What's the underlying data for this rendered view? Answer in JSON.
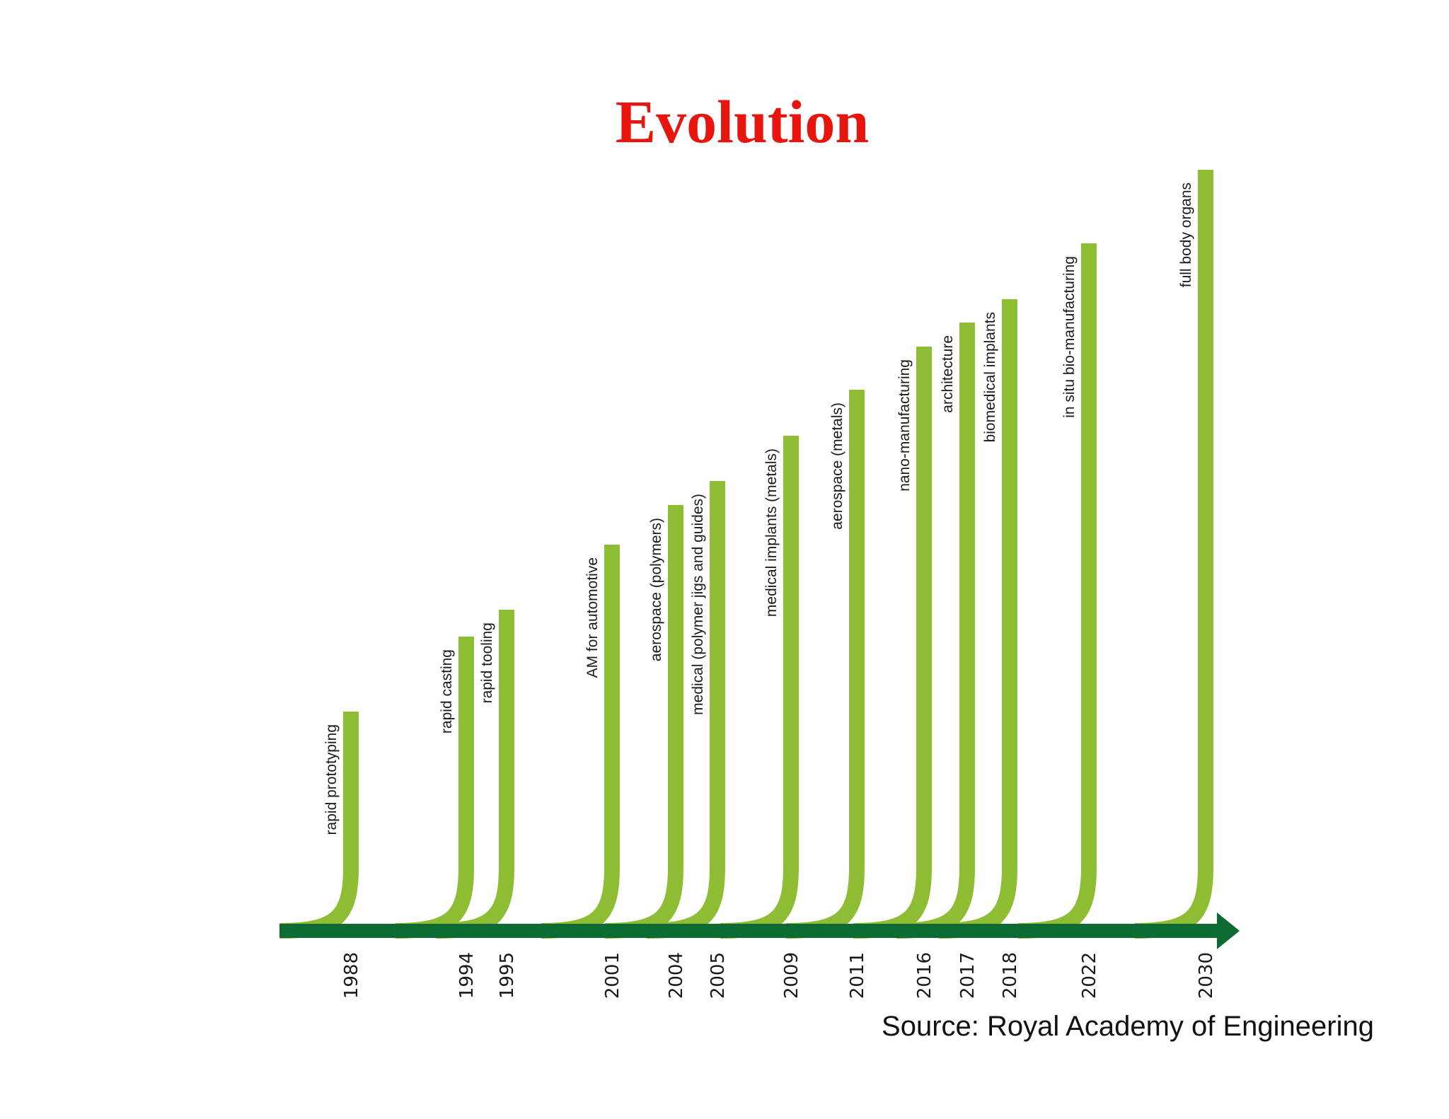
{
  "title": "Evolution",
  "title_color": "#e8150f",
  "bar_color": "#8cbd33",
  "arrow_color": "#0f6b34",
  "source": "Source: Royal Academy of Engineering",
  "milestones": [
    {
      "year": "1988",
      "label": "rapid prototyping"
    },
    {
      "year": "1994",
      "label": "rapid casting"
    },
    {
      "year": "1995",
      "label": "rapid tooling"
    },
    {
      "year": "2001",
      "label": "AM for automotive"
    },
    {
      "year": "2004",
      "label": "aerospace (polymers)"
    },
    {
      "year": "2005",
      "label": "medical (polymer jigs and guides)"
    },
    {
      "year": "2009",
      "label": "medical implants (metals)"
    },
    {
      "year": "2011",
      "label": "aerospace (metals)"
    },
    {
      "year": "2016",
      "label": "nano-manufacturing"
    },
    {
      "year": "2017",
      "label": "architecture"
    },
    {
      "year": "2018",
      "label": "biomedical implants"
    },
    {
      "year": "2022",
      "label": "in situ bio-manufacturing"
    },
    {
      "year": "2030",
      "label": "full body organs"
    }
  ]
}
